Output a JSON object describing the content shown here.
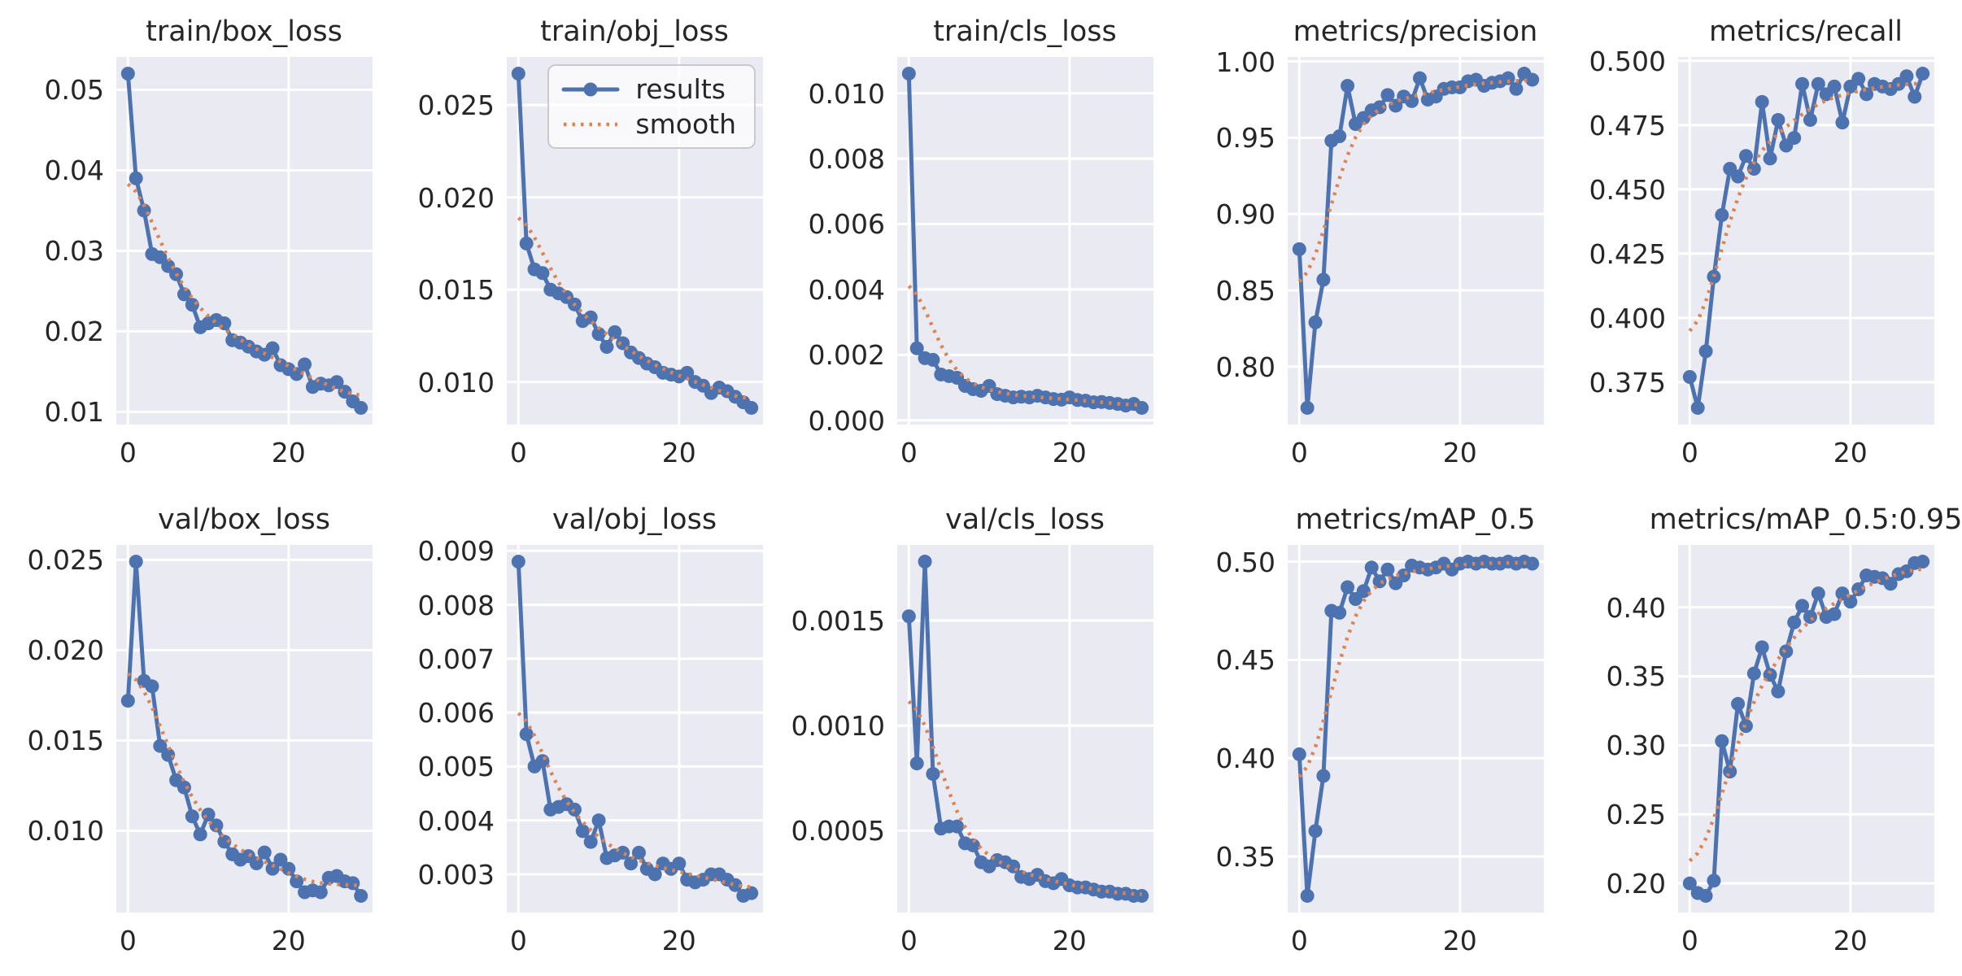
{
  "figure": {
    "background_color": "#ffffff",
    "axes_background_color": "#eaeaf2",
    "grid_color": "#ffffff",
    "text_color": "#262626",
    "results_color": "#4c72b0",
    "smooth_color": "#dd8452",
    "rows": 2,
    "cols": 5
  },
  "legend": {
    "host_subplot": "train/obj_loss",
    "position": "upper-right",
    "entries": [
      {
        "label": "results",
        "style": "solid-line-with-marker",
        "color": "#4c72b0"
      },
      {
        "label": "smooth",
        "style": "dotted-line",
        "color": "#dd8452"
      }
    ]
  },
  "chart_data": [
    {
      "type": "line",
      "title": "train/box_loss",
      "x": [
        0,
        1,
        2,
        3,
        4,
        5,
        6,
        7,
        8,
        9,
        10,
        11,
        12,
        13,
        14,
        15,
        16,
        17,
        18,
        19,
        20,
        21,
        22,
        23,
        24,
        25,
        26,
        27,
        28,
        29
      ],
      "series": [
        {
          "name": "results",
          "values": [
            0.052,
            0.039,
            0.035,
            0.0296,
            0.0292,
            0.0281,
            0.0271,
            0.0246,
            0.0233,
            0.0205,
            0.021,
            0.0214,
            0.021,
            0.0189,
            0.0186,
            0.0181,
            0.0175,
            0.0171,
            0.0179,
            0.0158,
            0.0153,
            0.0147,
            0.0159,
            0.0131,
            0.0135,
            0.0133,
            0.0137,
            0.0125,
            0.0113,
            0.0105
          ]
        }
      ],
      "smooth": {
        "name": "smooth",
        "method": "gaussian_filter1d",
        "sigma": 3
      },
      "y_ticks": [
        0.01,
        0.02,
        0.03,
        0.04,
        0.05
      ],
      "y_tick_labels": [
        "0.01",
        "0.02",
        "0.03",
        "0.04",
        "0.05"
      ],
      "x_ticks": [
        0,
        20
      ],
      "x_tick_labels": [
        "0",
        "20"
      ],
      "xlim": [
        -1.45,
        30.45
      ],
      "grid": true,
      "show_legend": false
    },
    {
      "type": "line",
      "title": "train/obj_loss",
      "x": [
        0,
        1,
        2,
        3,
        4,
        5,
        6,
        7,
        8,
        9,
        10,
        11,
        12,
        13,
        14,
        15,
        16,
        17,
        18,
        19,
        20,
        21,
        22,
        23,
        24,
        25,
        26,
        27,
        28,
        29
      ],
      "series": [
        {
          "name": "results",
          "values": [
            0.0267,
            0.0175,
            0.0161,
            0.0159,
            0.015,
            0.0148,
            0.0146,
            0.0142,
            0.0133,
            0.0135,
            0.0126,
            0.0119,
            0.0127,
            0.0121,
            0.0116,
            0.0113,
            0.011,
            0.0108,
            0.0105,
            0.0104,
            0.0103,
            0.0105,
            0.01,
            0.0098,
            0.0094,
            0.0097,
            0.0095,
            0.0092,
            0.0089,
            0.0086
          ]
        }
      ],
      "smooth": {
        "name": "smooth",
        "method": "gaussian_filter1d",
        "sigma": 3
      },
      "y_ticks": [
        0.01,
        0.015,
        0.02,
        0.025
      ],
      "y_tick_labels": [
        "0.010",
        "0.015",
        "0.020",
        "0.025"
      ],
      "x_ticks": [
        0,
        20
      ],
      "x_tick_labels": [
        "0",
        "20"
      ],
      "xlim": [
        -1.45,
        30.45
      ],
      "grid": true,
      "show_legend": true
    },
    {
      "type": "line",
      "title": "train/cls_loss",
      "x": [
        0,
        1,
        2,
        3,
        4,
        5,
        6,
        7,
        8,
        9,
        10,
        11,
        12,
        13,
        14,
        15,
        16,
        17,
        18,
        19,
        20,
        21,
        22,
        23,
        24,
        25,
        26,
        27,
        28,
        29
      ],
      "series": [
        {
          "name": "results",
          "values": [
            0.0106,
            0.0022,
            0.0019,
            0.00185,
            0.0014,
            0.00135,
            0.0013,
            0.00105,
            0.00095,
            0.0009,
            0.00105,
            0.0008,
            0.00075,
            0.0007,
            0.00072,
            0.0007,
            0.00075,
            0.0007,
            0.00065,
            0.00063,
            0.0007,
            0.00062,
            0.0006,
            0.00055,
            0.00056,
            0.00053,
            0.0005,
            0.00045,
            0.0005,
            0.00038
          ]
        }
      ],
      "smooth": {
        "name": "smooth",
        "method": "gaussian_filter1d",
        "sigma": 3
      },
      "y_ticks": [
        0.0,
        0.002,
        0.004,
        0.006,
        0.008,
        0.01
      ],
      "y_tick_labels": [
        "0.000",
        "0.002",
        "0.004",
        "0.006",
        "0.008",
        "0.010"
      ],
      "x_ticks": [
        0,
        20
      ],
      "x_tick_labels": [
        "0",
        "20"
      ],
      "xlim": [
        -1.45,
        30.45
      ],
      "grid": true,
      "show_legend": false
    },
    {
      "type": "line",
      "title": "metrics/precision",
      "x": [
        0,
        1,
        2,
        3,
        4,
        5,
        6,
        7,
        8,
        9,
        10,
        11,
        12,
        13,
        14,
        15,
        16,
        17,
        18,
        19,
        20,
        21,
        22,
        23,
        24,
        25,
        26,
        27,
        28,
        29
      ],
      "series": [
        {
          "name": "results",
          "values": [
            0.877,
            0.773,
            0.829,
            0.857,
            0.948,
            0.951,
            0.984,
            0.959,
            0.963,
            0.968,
            0.97,
            0.978,
            0.971,
            0.977,
            0.974,
            0.989,
            0.975,
            0.977,
            0.982,
            0.983,
            0.983,
            0.987,
            0.988,
            0.984,
            0.986,
            0.987,
            0.989,
            0.982,
            0.992,
            0.988
          ]
        }
      ],
      "smooth": {
        "name": "smooth",
        "method": "gaussian_filter1d",
        "sigma": 3
      },
      "y_ticks": [
        0.8,
        0.85,
        0.9,
        0.95,
        1.0
      ],
      "y_tick_labels": [
        "0.80",
        "0.85",
        "0.90",
        "0.95",
        "1.00"
      ],
      "x_ticks": [
        0,
        20
      ],
      "x_tick_labels": [
        "0",
        "20"
      ],
      "xlim": [
        -1.45,
        30.45
      ],
      "grid": true,
      "show_legend": false
    },
    {
      "type": "line",
      "title": "metrics/recall",
      "x": [
        0,
        1,
        2,
        3,
        4,
        5,
        6,
        7,
        8,
        9,
        10,
        11,
        12,
        13,
        14,
        15,
        16,
        17,
        18,
        19,
        20,
        21,
        22,
        23,
        24,
        25,
        26,
        27,
        28,
        29
      ],
      "series": [
        {
          "name": "results",
          "values": [
            0.377,
            0.365,
            0.387,
            0.416,
            0.44,
            0.458,
            0.455,
            0.463,
            0.458,
            0.484,
            0.462,
            0.477,
            0.467,
            0.47,
            0.491,
            0.477,
            0.491,
            0.487,
            0.49,
            0.476,
            0.49,
            0.493,
            0.487,
            0.491,
            0.49,
            0.489,
            0.491,
            0.494,
            0.486,
            0.495
          ]
        }
      ],
      "smooth": {
        "name": "smooth",
        "method": "gaussian_filter1d",
        "sigma": 3
      },
      "y_ticks": [
        0.375,
        0.4,
        0.425,
        0.45,
        0.475,
        0.5
      ],
      "y_tick_labels": [
        "0.375",
        "0.400",
        "0.425",
        "0.450",
        "0.475",
        "0.500"
      ],
      "x_ticks": [
        0,
        20
      ],
      "x_tick_labels": [
        "0",
        "20"
      ],
      "xlim": [
        -1.45,
        30.45
      ],
      "grid": true,
      "show_legend": false
    },
    {
      "type": "line",
      "title": "val/box_loss",
      "x": [
        0,
        1,
        2,
        3,
        4,
        5,
        6,
        7,
        8,
        9,
        10,
        11,
        12,
        13,
        14,
        15,
        16,
        17,
        18,
        19,
        20,
        21,
        22,
        23,
        24,
        25,
        26,
        27,
        28,
        29
      ],
      "series": [
        {
          "name": "results",
          "values": [
            0.0172,
            0.0249,
            0.0183,
            0.018,
            0.0147,
            0.0142,
            0.0128,
            0.0124,
            0.0108,
            0.0098,
            0.0109,
            0.0103,
            0.0094,
            0.0087,
            0.0084,
            0.0086,
            0.0082,
            0.0088,
            0.0079,
            0.0084,
            0.0079,
            0.0072,
            0.0066,
            0.0067,
            0.0066,
            0.0074,
            0.0075,
            0.0072,
            0.0071,
            0.0064
          ]
        }
      ],
      "smooth": {
        "name": "smooth",
        "method": "gaussian_filter1d",
        "sigma": 3
      },
      "y_ticks": [
        0.01,
        0.015,
        0.02,
        0.025
      ],
      "y_tick_labels": [
        "0.010",
        "0.015",
        "0.020",
        "0.025"
      ],
      "x_ticks": [
        0,
        20
      ],
      "x_tick_labels": [
        "0",
        "20"
      ],
      "xlim": [
        -1.45,
        30.45
      ],
      "grid": true,
      "show_legend": false
    },
    {
      "type": "line",
      "title": "val/obj_loss",
      "x": [
        0,
        1,
        2,
        3,
        4,
        5,
        6,
        7,
        8,
        9,
        10,
        11,
        12,
        13,
        14,
        15,
        16,
        17,
        18,
        19,
        20,
        21,
        22,
        23,
        24,
        25,
        26,
        27,
        28,
        29
      ],
      "series": [
        {
          "name": "results",
          "values": [
            0.0088,
            0.0056,
            0.005,
            0.0051,
            0.0042,
            0.00425,
            0.0043,
            0.0042,
            0.0038,
            0.0036,
            0.004,
            0.0033,
            0.00335,
            0.0034,
            0.0032,
            0.0034,
            0.0031,
            0.003,
            0.0032,
            0.0031,
            0.0032,
            0.0029,
            0.00285,
            0.0029,
            0.003,
            0.003,
            0.0029,
            0.0028,
            0.0026,
            0.00265
          ]
        }
      ],
      "smooth": {
        "name": "smooth",
        "method": "gaussian_filter1d",
        "sigma": 3
      },
      "y_ticks": [
        0.003,
        0.004,
        0.005,
        0.006,
        0.007,
        0.008,
        0.009
      ],
      "y_tick_labels": [
        "0.003",
        "0.004",
        "0.005",
        "0.006",
        "0.007",
        "0.008",
        "0.009"
      ],
      "x_ticks": [
        0,
        20
      ],
      "x_tick_labels": [
        "0",
        "20"
      ],
      "xlim": [
        -1.45,
        30.45
      ],
      "grid": true,
      "show_legend": false
    },
    {
      "type": "line",
      "title": "val/cls_loss",
      "x": [
        0,
        1,
        2,
        3,
        4,
        5,
        6,
        7,
        8,
        9,
        10,
        11,
        12,
        13,
        14,
        15,
        16,
        17,
        18,
        19,
        20,
        21,
        22,
        23,
        24,
        25,
        26,
        27,
        28,
        29
      ],
      "series": [
        {
          "name": "results",
          "values": [
            0.00152,
            0.00082,
            0.00178,
            0.00077,
            0.00051,
            0.00052,
            0.00052,
            0.00044,
            0.00043,
            0.00035,
            0.00033,
            0.00036,
            0.00035,
            0.00033,
            0.00028,
            0.00027,
            0.00029,
            0.00026,
            0.00025,
            0.00027,
            0.00024,
            0.00023,
            0.00023,
            0.00022,
            0.00021,
            0.00021,
            0.0002,
            0.0002,
            0.00019,
            0.00019
          ]
        }
      ],
      "smooth": {
        "name": "smooth",
        "method": "gaussian_filter1d",
        "sigma": 3
      },
      "y_ticks": [
        0.0005,
        0.001,
        0.0015
      ],
      "y_tick_labels": [
        "0.0005",
        "0.0010",
        "0.0015"
      ],
      "x_ticks": [
        0,
        20
      ],
      "x_tick_labels": [
        "0",
        "20"
      ],
      "xlim": [
        -1.45,
        30.45
      ],
      "grid": true,
      "show_legend": false
    },
    {
      "type": "line",
      "title": "metrics/mAP_0.5",
      "x": [
        0,
        1,
        2,
        3,
        4,
        5,
        6,
        7,
        8,
        9,
        10,
        11,
        12,
        13,
        14,
        15,
        16,
        17,
        18,
        19,
        20,
        21,
        22,
        23,
        24,
        25,
        26,
        27,
        28,
        29
      ],
      "series": [
        {
          "name": "results",
          "values": [
            0.402,
            0.33,
            0.363,
            0.391,
            0.475,
            0.474,
            0.487,
            0.481,
            0.485,
            0.497,
            0.49,
            0.496,
            0.489,
            0.493,
            0.498,
            0.497,
            0.496,
            0.497,
            0.499,
            0.496,
            0.499,
            0.5,
            0.499,
            0.5,
            0.499,
            0.499,
            0.5,
            0.499,
            0.5,
            0.499
          ]
        }
      ],
      "smooth": {
        "name": "smooth",
        "method": "gaussian_filter1d",
        "sigma": 3
      },
      "y_ticks": [
        0.35,
        0.4,
        0.45,
        0.5
      ],
      "y_tick_labels": [
        "0.35",
        "0.40",
        "0.45",
        "0.50"
      ],
      "x_ticks": [
        0,
        20
      ],
      "x_tick_labels": [
        "0",
        "20"
      ],
      "xlim": [
        -1.45,
        30.45
      ],
      "grid": true,
      "show_legend": false
    },
    {
      "type": "line",
      "title": "metrics/mAP_0.5:0.95",
      "x": [
        0,
        1,
        2,
        3,
        4,
        5,
        6,
        7,
        8,
        9,
        10,
        11,
        12,
        13,
        14,
        15,
        16,
        17,
        18,
        19,
        20,
        21,
        22,
        23,
        24,
        25,
        26,
        27,
        28,
        29
      ],
      "series": [
        {
          "name": "results",
          "values": [
            0.2,
            0.193,
            0.191,
            0.202,
            0.303,
            0.281,
            0.33,
            0.314,
            0.352,
            0.371,
            0.351,
            0.339,
            0.368,
            0.389,
            0.401,
            0.393,
            0.41,
            0.393,
            0.395,
            0.41,
            0.404,
            0.413,
            0.423,
            0.422,
            0.421,
            0.417,
            0.424,
            0.426,
            0.432,
            0.433
          ]
        }
      ],
      "smooth": {
        "name": "smooth",
        "method": "gaussian_filter1d",
        "sigma": 3
      },
      "y_ticks": [
        0.2,
        0.25,
        0.3,
        0.35,
        0.4
      ],
      "y_tick_labels": [
        "0.20",
        "0.25",
        "0.30",
        "0.35",
        "0.40"
      ],
      "x_ticks": [
        0,
        20
      ],
      "x_tick_labels": [
        "0",
        "20"
      ],
      "xlim": [
        -1.45,
        30.45
      ],
      "grid": true,
      "show_legend": false
    }
  ]
}
